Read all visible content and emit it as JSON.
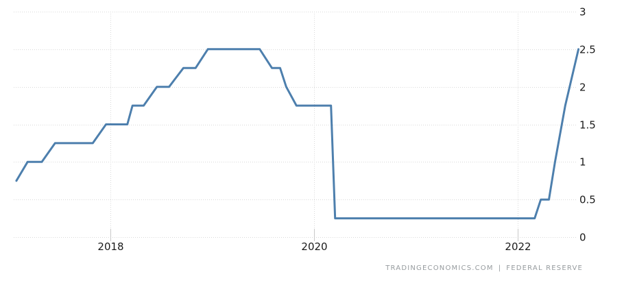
{
  "chart_data": {
    "type": "line",
    "subtype": "stepped-monthly-rate-series",
    "x_axis": {
      "tick_labels": [
        "2018",
        "2020",
        "2022"
      ],
      "tick_years": [
        2018,
        2020,
        2022
      ],
      "range_years": [
        2017.04,
        2022.64
      ],
      "gridlines": "dotted"
    },
    "y_axis": {
      "tick_labels": [
        "0",
        "0.5",
        "1",
        "1.5",
        "2",
        "2.5",
        "3"
      ],
      "tick_values": [
        0,
        0.5,
        1,
        1.5,
        2,
        2.5,
        3
      ],
      "range": [
        0,
        3
      ],
      "position": "right",
      "gridlines": "dotted"
    },
    "series": [
      {
        "name": "interest-rate-percent",
        "points": [
          {
            "date": "Feb 2017",
            "t": 2017.08,
            "value": 0.75
          },
          {
            "date": "Mar 2017",
            "t": 2017.19,
            "value": 1.0
          },
          {
            "date": "May 2017",
            "t": 2017.33,
            "value": 1.0
          },
          {
            "date": "Jun 2017",
            "t": 2017.46,
            "value": 1.25
          },
          {
            "date": "Nov 2017",
            "t": 2017.83,
            "value": 1.25
          },
          {
            "date": "Dec 2017",
            "t": 2017.96,
            "value": 1.5
          },
          {
            "date": "Feb 2018",
            "t": 2018.17,
            "value": 1.5
          },
          {
            "date": "Mar 2018",
            "t": 2018.22,
            "value": 1.75
          },
          {
            "date": "May 2018",
            "t": 2018.33,
            "value": 1.75
          },
          {
            "date": "Jun 2018",
            "t": 2018.46,
            "value": 2.0
          },
          {
            "date": "Aug 2018",
            "t": 2018.58,
            "value": 2.0
          },
          {
            "date": "Sep 2018",
            "t": 2018.72,
            "value": 2.25
          },
          {
            "date": "Nov 2018",
            "t": 2018.84,
            "value": 2.25
          },
          {
            "date": "Dec 2018",
            "t": 2018.96,
            "value": 2.5
          },
          {
            "date": "Jun 2019",
            "t": 2019.47,
            "value": 2.5
          },
          {
            "date": "Aug 2019",
            "t": 2019.59,
            "value": 2.25
          },
          {
            "date": "Sep 2019",
            "t": 2019.67,
            "value": 2.25
          },
          {
            "date": "Oct 2019",
            "t": 2019.73,
            "value": 2.0
          },
          {
            "date": "Nov 2019",
            "t": 2019.83,
            "value": 1.75
          },
          {
            "date": "Feb 2020",
            "t": 2020.17,
            "value": 1.75
          },
          {
            "date": "Mar 2020",
            "t": 2020.21,
            "value": 0.25
          },
          {
            "date": "Feb 2022",
            "t": 2022.17,
            "value": 0.25
          },
          {
            "date": "Mar 2022",
            "t": 2022.23,
            "value": 0.5
          },
          {
            "date": "Apr 2022",
            "t": 2022.31,
            "value": 0.5
          },
          {
            "date": "May 2022",
            "t": 2022.37,
            "value": 1.0
          },
          {
            "date": "Jun 2022",
            "t": 2022.47,
            "value": 1.75
          },
          {
            "date": "Jul 2022",
            "t": 2022.6,
            "value": 2.5
          }
        ]
      }
    ],
    "colors": {
      "line": "#4d7fad",
      "gridline": "#d9d9d9",
      "tick_mark": "#c9c9c9",
      "axis_label": "#1a1a1a",
      "background": "#ffffff"
    },
    "legend": "none",
    "grid": "on"
  },
  "attribution": {
    "left": "TRADINGECONOMICS.COM",
    "separator": "|",
    "right": "FEDERAL RESERVE"
  }
}
